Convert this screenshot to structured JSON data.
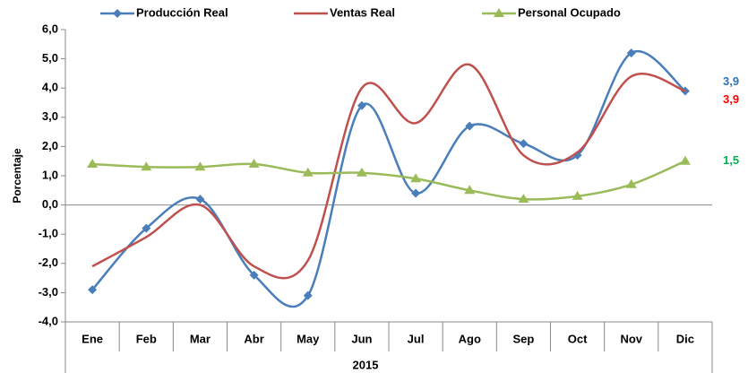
{
  "chart_data": {
    "type": "line",
    "categories": [
      "Ene",
      "Feb",
      "Mar",
      "Abr",
      "May",
      "Jun",
      "Jul",
      "Ago",
      "Sep",
      "Oct",
      "Nov",
      "Dic"
    ],
    "x_group_label": "2015",
    "y_label": "Porcentaje",
    "series": [
      {
        "name": "Producción Real",
        "color": "#4a7ebb",
        "marker": "diamond",
        "values": [
          -2.9,
          -0.8,
          0.2,
          -2.4,
          -3.1,
          3.4,
          0.4,
          2.7,
          2.1,
          1.7,
          5.2,
          3.9
        ],
        "value_labels": [
          null,
          null,
          null,
          null,
          null,
          null,
          null,
          null,
          null,
          null,
          null,
          "3,9"
        ],
        "label_color": "#2e75b6"
      },
      {
        "name": "Ventas Real",
        "color": "#c0504d",
        "marker": "none",
        "values": [
          -2.1,
          -1.1,
          0.0,
          -2.1,
          -1.9,
          4.0,
          2.8,
          4.8,
          1.7,
          1.8,
          4.4,
          3.9
        ],
        "value_labels": [
          null,
          null,
          null,
          null,
          null,
          null,
          null,
          null,
          null,
          null,
          null,
          "3,9"
        ],
        "label_color": "#ff0000"
      },
      {
        "name": "Personal Ocupado",
        "color": "#9bbb59",
        "marker": "triangle",
        "values": [
          1.4,
          1.3,
          1.3,
          1.4,
          1.1,
          1.1,
          0.9,
          0.5,
          0.2,
          0.3,
          0.7,
          1.5
        ],
        "value_labels": [
          null,
          null,
          null,
          null,
          null,
          null,
          null,
          null,
          null,
          null,
          null,
          "1,5"
        ],
        "label_color": "#00b050"
      }
    ],
    "ylim": [
      -4,
      6
    ],
    "yticks": [
      {
        "value": -4,
        "label": "-4,0"
      },
      {
        "value": -3,
        "label": "-3,0"
      },
      {
        "value": -2,
        "label": "-2,0"
      },
      {
        "value": -1,
        "label": "-1,0"
      },
      {
        "value": 0,
        "label": "0,0"
      },
      {
        "value": 1,
        "label": "1,0"
      },
      {
        "value": 2,
        "label": "2,0"
      },
      {
        "value": 3,
        "label": "3,0"
      },
      {
        "value": 4,
        "label": "4,0"
      },
      {
        "value": 5,
        "label": "5,0"
      },
      {
        "value": 6,
        "label": "6,0"
      }
    ],
    "smooth": true,
    "grid": false,
    "legend": "top"
  }
}
